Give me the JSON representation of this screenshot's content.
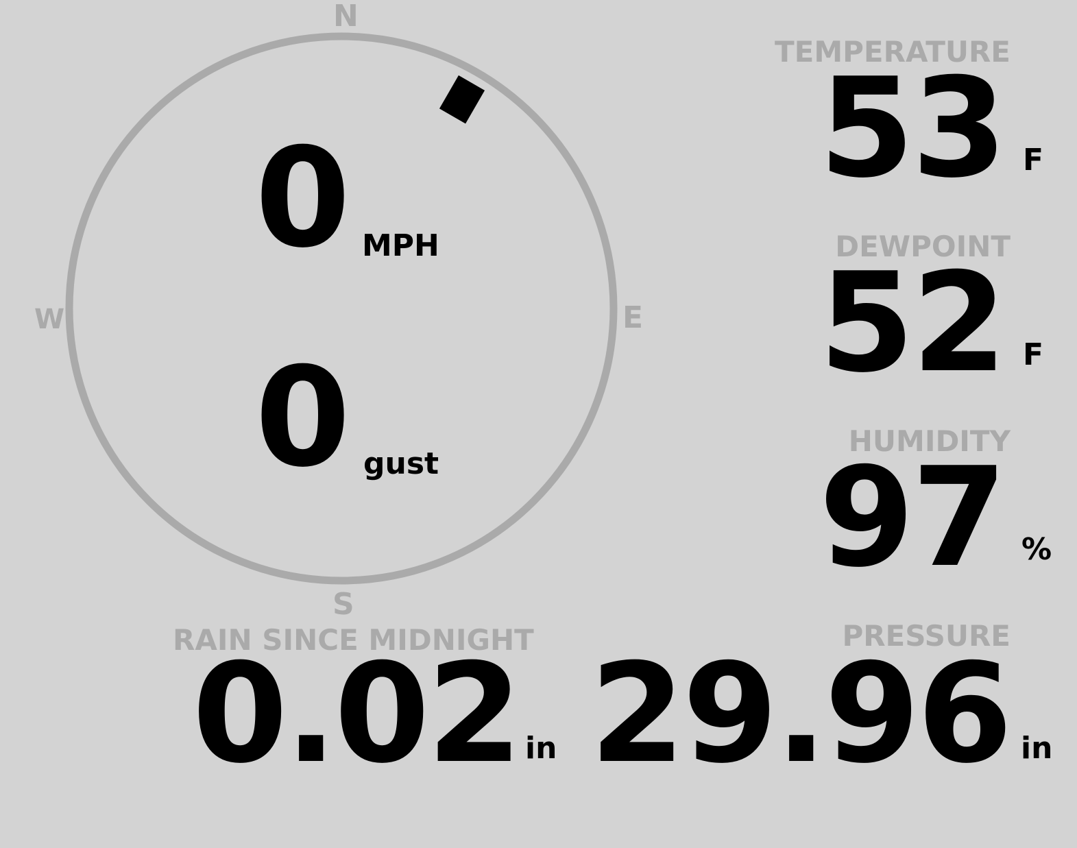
{
  "wind": {
    "direction_deg": 30,
    "speed": "0",
    "speed_unit": "MPH",
    "gust": "0",
    "gust_unit": "gust",
    "cardinals": {
      "n": "N",
      "e": "E",
      "s": "S",
      "w": "W"
    }
  },
  "temperature": {
    "label": "TEMPERATURE",
    "value": "53",
    "unit": "F"
  },
  "dewpoint": {
    "label": "DEWPOINT",
    "value": "52",
    "unit": "F"
  },
  "humidity": {
    "label": "HUMIDITY",
    "value": "97",
    "unit": "%"
  },
  "rain": {
    "label": "RAIN SINCE MIDNIGHT",
    "value": "0.02",
    "unit": "in"
  },
  "pressure": {
    "label": "PRESSURE",
    "value": "29.96",
    "unit": "in"
  },
  "colors": {
    "background": "#d3d3d3",
    "muted": "#aaaaaa",
    "foreground": "#000000"
  }
}
